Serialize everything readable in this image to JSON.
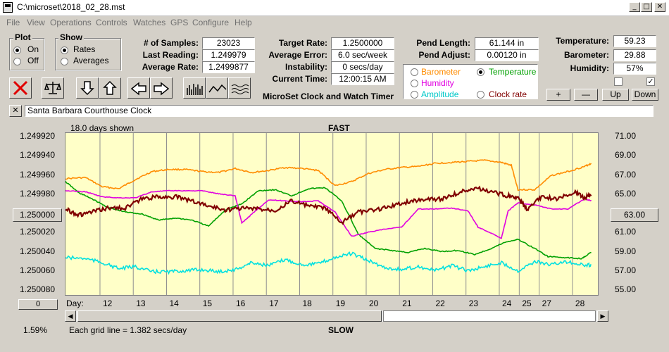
{
  "window": {
    "title": "C:\\microset\\2018_02_28.mst",
    "min": "_",
    "max": "□",
    "close": "✕"
  },
  "menu": [
    "File",
    "View",
    "Operations",
    "Controls",
    "Watches",
    "GPS",
    "Configure",
    "Help"
  ],
  "plot": {
    "label": "Plot",
    "on": "On",
    "off": "Off",
    "selected": "On"
  },
  "show": {
    "label": "Show",
    "rates": "Rates",
    "averages": "Averages",
    "selected": "Rates"
  },
  "stats": {
    "samples_label": "# of Samples:",
    "samples": "23023",
    "last_label": "Last Reading:",
    "last": "1.249979",
    "avg_label": "Average Rate:",
    "avg": "1.2499877"
  },
  "rates": {
    "target_label": "Target Rate:",
    "target": "1.2500000",
    "avg_err_label": "Average Error:",
    "avg_err": "6.0 sec/week",
    "instab_label": "Instability:",
    "instab": "0 secs/day",
    "time_label": "Current Time:",
    "time": "12:00:15 AM",
    "app_title": "MicroSet Clock and Watch Timer"
  },
  "pend": {
    "length_label": "Pend Length:",
    "length": "61.144 in",
    "adjust_label": "Pend Adjust:",
    "adjust": "0.00120 in"
  },
  "series_select": {
    "barometer": "Barometer",
    "temperature": "Temperature",
    "humidity": "Humidity",
    "amplitude": "Amplitude",
    "clock_rate": "Clock rate",
    "selected": "Temperature"
  },
  "env": {
    "temp_label": "Temperature:",
    "temp": "59.23",
    "baro_label": "Barometer:",
    "baro": "29.88",
    "hum_label": "Humidity:",
    "hum": "57%",
    "check1": false,
    "check2": true
  },
  "adjust_buttons": {
    "plus": "+",
    "minus": "—",
    "up": "Up",
    "down": "Down"
  },
  "clock_name": "Santa Barbara Courthouse Clock",
  "clock_close": "✕",
  "chart_labels": {
    "days_shown": "18.0 days shown",
    "fast": "FAST",
    "slow": "SLOW",
    "day": "Day:",
    "grid_note": "Each grid line = 1.382 secs/day",
    "percent": "1.59%",
    "left_btn": "1.250000",
    "bottom_btn": "0",
    "right_btn": "63.00"
  },
  "colors": {
    "barometer": "#ff8c00",
    "temperature": "#00a000",
    "humidity": "#e000e0",
    "amplitude": "#00e0e0",
    "clock_rate": "#800000",
    "chart_bg": "#ffffc8"
  },
  "chart_data": {
    "type": "line",
    "x_label": "Day:",
    "x_ticks": [
      "12",
      "13",
      "14",
      "15",
      "16",
      "17",
      "18",
      "19",
      "20",
      "21",
      "22",
      "23",
      "24",
      "25",
      "27",
      "28"
    ],
    "x_tick_days": [
      12,
      13,
      14,
      15,
      16,
      17,
      18,
      19,
      20,
      21,
      22,
      23,
      24,
      24.6,
      25.2,
      26.2
    ],
    "xlim": [
      10.9,
      26.9
    ],
    "left_axis": {
      "ticks": [
        "1.249920",
        "1.249940",
        "1.249960",
        "1.249980",
        "1.250000",
        "1.250020",
        "1.250040",
        "1.250060",
        "1.250080"
      ],
      "ylim": [
        1.25008,
        1.24992
      ],
      "reversed": true
    },
    "right_axis": {
      "ticks": [
        "71.00",
        "69.00",
        "67.00",
        "65.00",
        "63.00",
        "61.00",
        "59.00",
        "57.00",
        "55.00"
      ],
      "ylim": [
        55,
        71
      ]
    },
    "series": [
      {
        "name": "Barometer",
        "color": "#ff8c00",
        "axis": "right",
        "x": [
          10.9,
          11.5,
          12,
          12.5,
          13,
          13.5,
          14,
          14.5,
          15,
          15.5,
          16,
          16.5,
          17,
          17.5,
          18,
          18.5,
          19,
          19.5,
          20,
          20.5,
          21,
          21.5,
          22,
          22.5,
          23,
          23.5,
          24,
          24.3,
          24.5,
          25,
          25.5,
          26,
          26.5,
          26.7
        ],
        "y": [
          66.5,
          66.6,
          65.7,
          65.5,
          66.4,
          67.2,
          67.4,
          67.4,
          67.2,
          67.1,
          67.5,
          67.1,
          67.3,
          67.6,
          67.5,
          67.3,
          65.8,
          66.2,
          67.0,
          67.4,
          67.6,
          67.7,
          68.0,
          68.1,
          68.2,
          68.3,
          68.1,
          67.8,
          65.4,
          65.4,
          66.8,
          67.2,
          67.7,
          68.0
        ]
      },
      {
        "name": "Temperature",
        "color": "#00a000",
        "axis": "right",
        "x": [
          10.9,
          11.3,
          11.7,
          12.2,
          12.7,
          13.2,
          13.7,
          14.2,
          14.7,
          15.2,
          15.7,
          16.2,
          16.7,
          17.2,
          17.7,
          18.2,
          18.7,
          19.2,
          19.7,
          20.2,
          20.7,
          21.2,
          21.7,
          22.2,
          22.7,
          23.2,
          23.7,
          24.1,
          24.5,
          25.0,
          25.4,
          25.9,
          26.4,
          26.7
        ],
        "y": [
          66.2,
          65.1,
          64.5,
          63.6,
          63.2,
          63.0,
          62.4,
          62.6,
          62.4,
          61.8,
          63.4,
          64.0,
          65.3,
          65.4,
          64.8,
          65.5,
          65.6,
          64.3,
          61.0,
          59.6,
          59.4,
          59.2,
          59.6,
          59.3,
          59.4,
          59.0,
          59.6,
          60.2,
          60.5,
          59.6,
          58.8,
          58.7,
          58.6,
          59.2
        ]
      },
      {
        "name": "Humidity",
        "color": "#e000e0",
        "axis": "left",
        "x": [
          10.9,
          11.5,
          12,
          12.5,
          13,
          13.5,
          14,
          14.5,
          15,
          15.5,
          16,
          16.2,
          16.5,
          17,
          17.5,
          18,
          18.5,
          19,
          19.5,
          20,
          20.5,
          21,
          21.5,
          22,
          22.5,
          23,
          23.3,
          23.7,
          24,
          24.2,
          24.5,
          25,
          25.5,
          26,
          26.5,
          26.7
        ],
        "y": [
          1.249977,
          1.249978,
          1.249983,
          1.249984,
          1.249984,
          1.249978,
          1.249977,
          1.249977,
          1.249977,
          1.24998,
          1.249982,
          1.250009,
          1.25,
          1.249986,
          1.249987,
          1.249988,
          1.249987,
          1.249998,
          1.250022,
          1.250018,
          1.250015,
          1.250013,
          1.249995,
          1.249995,
          1.249994,
          1.249997,
          1.250013,
          1.250019,
          1.250024,
          1.249997,
          1.249989,
          1.249991,
          1.249995,
          1.249995,
          1.249985,
          1.249987
        ]
      },
      {
        "name": "Amplitude",
        "color": "#00e0e0",
        "axis": "left",
        "x": [
          10.9,
          11.5,
          12,
          12.5,
          13,
          13.5,
          14,
          14.5,
          15,
          15.5,
          16,
          16.5,
          17,
          17.5,
          18,
          18.5,
          19,
          19.5,
          20,
          20.5,
          21,
          21.5,
          22,
          22.5,
          23,
          23.5,
          24,
          24.5,
          25,
          25.5,
          26,
          26.5,
          26.7
        ],
        "y": [
          1.250043,
          1.250044,
          1.250048,
          1.250054,
          1.250052,
          1.250057,
          1.250057,
          1.250056,
          1.250055,
          1.250057,
          1.250055,
          1.250048,
          1.250051,
          1.250045,
          1.25005,
          1.250049,
          1.250043,
          1.250039,
          1.250046,
          1.250053,
          1.250055,
          1.250052,
          1.250056,
          1.250051,
          1.250056,
          1.250052,
          1.250048,
          1.250056,
          1.250047,
          1.25005,
          1.250047,
          1.250051,
          1.25005
        ]
      },
      {
        "name": "Clock rate",
        "color": "#800000",
        "axis": "left",
        "x": [
          10.9,
          11.3,
          11.7,
          12.2,
          12.7,
          13.2,
          13.7,
          14.2,
          14.7,
          15.2,
          15.7,
          16.2,
          16.7,
          17.2,
          17.7,
          18.2,
          18.7,
          19.2,
          19.7,
          20.2,
          20.7,
          21.2,
          21.7,
          22.2,
          22.7,
          23.2,
          23.7,
          24.2,
          24.5,
          24.8,
          25.2,
          25.7,
          26.2,
          26.5,
          26.7
        ],
        "y": [
          1.249995,
          1.250001,
          1.249998,
          1.249994,
          1.249994,
          1.249985,
          1.249983,
          1.249983,
          1.249987,
          1.249992,
          1.249996,
          1.249994,
          1.249995,
          1.249996,
          1.249987,
          1.249992,
          1.249994,
          1.250009,
          1.249998,
          1.249996,
          1.249992,
          1.249988,
          1.249985,
          1.249985,
          1.249979,
          1.249974,
          1.249978,
          1.249982,
          1.249985,
          1.249996,
          1.249983,
          1.249985,
          1.249978,
          1.249984,
          1.249981
        ]
      }
    ]
  }
}
